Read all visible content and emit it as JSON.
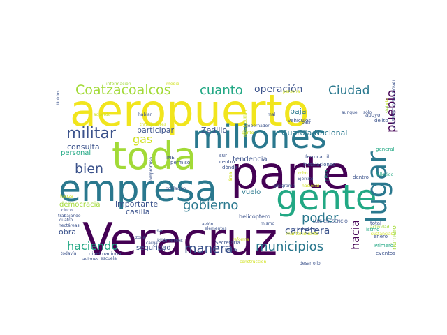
{
  "words": [
    {
      "text": "aeropuerto",
      "color": "#f1e51d"
    },
    {
      "text": "parte",
      "color": "#440154"
    },
    {
      "text": "Veracruz",
      "color": "#440154"
    },
    {
      "text": "empresa",
      "color": "#2a788e"
    },
    {
      "text": "toda",
      "color": "#a2da37"
    },
    {
      "text": "millones",
      "color": "#2a788e"
    },
    {
      "text": "gente",
      "color": "#22a884"
    },
    {
      "text": "lugar",
      "color": "#2a788e"
    },
    {
      "text": "Coatzacoalcos",
      "color": "#a2da37"
    },
    {
      "text": "cuanto",
      "color": "#22a884"
    },
    {
      "text": "operación",
      "color": "#3b528b"
    },
    {
      "text": "Ciudad",
      "color": "#2a788e"
    },
    {
      "text": "pueblo",
      "color": "#440154"
    },
    {
      "text": "militar",
      "color": "#3b528b"
    },
    {
      "text": "gas",
      "color": "#d0e11c"
    },
    {
      "text": "bien",
      "color": "#3b528b"
    },
    {
      "text": "gobierno",
      "color": "#2a788e"
    },
    {
      "text": "poder",
      "color": "#2a788e"
    },
    {
      "text": "municipios",
      "color": "#2a788e"
    },
    {
      "text": "manera",
      "color": "#3b528b"
    },
    {
      "text": "haciendo",
      "color": "#22a884"
    },
    {
      "text": "carretera",
      "color": "#3b528b"
    },
    {
      "text": "hacia",
      "color": "#440154"
    },
    {
      "text": "Guardia Nacional",
      "color": "#2a788e"
    },
    {
      "text": "baja",
      "color": "#2a788e"
    },
    {
      "text": "Zedillo",
      "color": "#3b528b"
    },
    {
      "text": "participar",
      "color": "#3b528b"
    },
    {
      "text": "consulta",
      "color": "#3b528b"
    },
    {
      "text": "personal",
      "color": "#22a884"
    },
    {
      "text": "tendencia",
      "color": "#3b528b"
    },
    {
      "text": "vuelo",
      "color": "#2a788e"
    },
    {
      "text": "importante",
      "color": "#3b528b"
    },
    {
      "text": "democracia",
      "color": "#a2da37"
    },
    {
      "text": "casilla",
      "color": "#3b528b"
    },
    {
      "text": "obra",
      "color": "#3b528b"
    },
    {
      "text": "seguridad",
      "color": "#3b528b"
    },
    {
      "text": "número",
      "color": "#a2da37"
    },
    {
      "text": "helicóptero",
      "color": "#3b528b"
    },
    {
      "text": "Unidos",
      "color": "#3b528b"
    },
    {
      "text": "información",
      "color": "#a2da37"
    },
    {
      "text": "medio",
      "color": "#d0e11c"
    },
    {
      "text": "acuerdo",
      "color": "#d0e11c"
    },
    {
      "text": "hablar",
      "color": "#3b528b"
    },
    {
      "text": "Hidalgotitlán",
      "color": "#d0e11c"
    },
    {
      "text": "persona",
      "color": "#d0e11c"
    },
    {
      "text": "país",
      "color": "#3b528b"
    },
    {
      "text": "vehículos",
      "color": "#3b528b"
    },
    {
      "text": "aunque",
      "color": "#3b528b"
    },
    {
      "text": "sólo",
      "color": "#3b528b"
    },
    {
      "text": "apoyo",
      "color": "#3b528b"
    },
    {
      "text": "delito",
      "color": "#3b528b"
    },
    {
      "text": "general",
      "color": "#22a884"
    },
    {
      "text": "permiso",
      "color": "#3b528b"
    },
    {
      "text": "INE",
      "color": "#3b528b"
    },
    {
      "text": "ferrocarril",
      "color": "#3b528b"
    },
    {
      "text": "instalaciones",
      "color": "#3b528b"
    },
    {
      "text": "Ejército",
      "color": "#3b528b"
    },
    {
      "text": "robo",
      "color": "#d0e11c"
    },
    {
      "text": "fallecido",
      "color": "#22a884"
    },
    {
      "text": "dentro",
      "color": "#3b528b"
    },
    {
      "text": "programa",
      "color": "#3b528b"
    },
    {
      "text": "nacional",
      "color": "#d0e11c"
    },
    {
      "text": "ciudadano",
      "color": "#3b528b"
    },
    {
      "text": "istmo",
      "color": "#22a884"
    },
    {
      "text": "total",
      "color": "#3b528b"
    },
    {
      "text": "actividad",
      "color": "#a2da37"
    },
    {
      "text": "enero",
      "color": "#3b528b"
    },
    {
      "text": "Primero",
      "color": "#22a884"
    },
    {
      "text": "eventos",
      "color": "#3b528b"
    },
    {
      "text": "kilómetros",
      "color": "#3b528b"
    },
    {
      "text": "Secretaría",
      "color": "#3b528b"
    },
    {
      "text": "nivel nacional",
      "color": "#3b528b"
    },
    {
      "text": "todavía",
      "color": "#3b528b"
    },
    {
      "text": "trabajando",
      "color": "#3b528b"
    },
    {
      "text": "hectáreas",
      "color": "#3b528b"
    },
    {
      "text": "cinco",
      "color": "#3b528b"
    },
    {
      "text": "cuatro",
      "color": "#3b528b"
    },
    {
      "text": "aviones",
      "color": "#3b528b"
    },
    {
      "text": "escuela",
      "color": "#3b528b"
    },
    {
      "text": "construcción",
      "color": "#d0e11c"
    },
    {
      "text": "desarrollo",
      "color": "#3b528b"
    },
    {
      "text": "reforma",
      "color": "#d0e11c"
    },
    {
      "text": "población",
      "color": "#3b528b"
    },
    {
      "text": "fuerza",
      "color": "#d0e11c"
    },
    {
      "text": "zona",
      "color": "#3b528b"
    },
    {
      "text": "carga",
      "color": "#3b528b"
    },
    {
      "text": "avión",
      "color": "#3b528b"
    },
    {
      "text": "pesos",
      "color": "#3b528b"
    },
    {
      "text": "mismo",
      "color": "#3b528b"
    },
    {
      "text": "LUIS CRESENCIO",
      "color": "#3b528b"
    },
    {
      "text": "CRESENCIO SANDOVAL",
      "color": "#3b528b"
    },
    {
      "text": "sustancias",
      "color": "#d0e11c"
    },
    {
      "text": "dar",
      "color": "#3b528b"
    },
    {
      "text": "hizo",
      "color": "#3b528b"
    },
    {
      "text": "área",
      "color": "#d0e11c"
    },
    {
      "text": "pista",
      "color": "#22a884"
    },
    {
      "text": "compromiso",
      "color": "#3b528b"
    },
    {
      "text": "gobernador",
      "color": "#3b528b"
    },
    {
      "text": "punto",
      "color": "#d0e11c"
    },
    {
      "text": "sur",
      "color": "#3b528b"
    },
    {
      "text": "centro",
      "color": "#3b528b"
    },
    {
      "text": "dónde",
      "color": "#3b528b"
    },
    {
      "text": "mal",
      "color": "#3b528b"
    },
    {
      "text": "elementos",
      "color": "#3b528b"
    },
    {
      "text": "siete",
      "color": "#a2da37"
    },
    {
      "text": "vía",
      "color": "#d0e11c"
    },
    {
      "text": "trabajadores",
      "color": "#d0e11c"
    },
    {
      "text": "mantenimiento",
      "color": "#d0e11c"
    }
  ]
}
